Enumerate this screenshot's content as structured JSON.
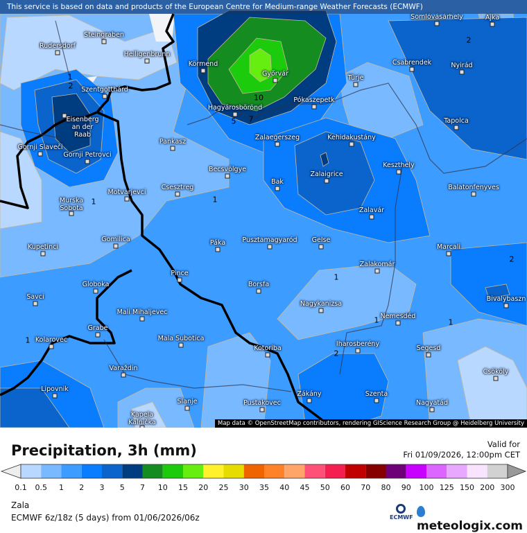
{
  "banner": "This service is based on data and products of the European Centre for Medium-range Weather Forecasts (ECMWF)",
  "attribution": "Map data © OpenStreetMap contributors, rendering GIScience Research Group @ Heidelberg University",
  "title": "Precipitation, 3h (mm)",
  "valid_label": "Valid for",
  "valid_time": "Fri 01/09/2026, 12:00pm CET",
  "region": "Zala",
  "model": "ECMWF 6z/18z (5 days) from  01/06/2026/06z",
  "ecmwf_logo": "ECMWF",
  "brand": "meteologix.com",
  "legend": {
    "ticks": [
      "0.1",
      "0.5",
      "1",
      "2",
      "3",
      "5",
      "7",
      "10",
      "15",
      "20",
      "25",
      "30",
      "35",
      "40",
      "45",
      "50",
      "60",
      "70",
      "80",
      "90",
      "100",
      "125",
      "150",
      "200",
      "300"
    ],
    "colors": [
      "#b8d8ff",
      "#78b9ff",
      "#3c9cff",
      "#0a7dff",
      "#0a64cc",
      "#003c80",
      "#148c20",
      "#1ccc0c",
      "#66ee10",
      "#fff22c",
      "#e6dc00",
      "#f06400",
      "#ff8228",
      "#ffa56a",
      "#ff5078",
      "#f51e50",
      "#c00000",
      "#870000",
      "#6e0078",
      "#c800ff",
      "#dc64ff",
      "#e8a8ff",
      "#f8e4ff",
      "#d2d2d2"
    ],
    "below_color": "#eeeeee",
    "above_color": "#999999"
  },
  "towns": [
    "Somlóvásárhely",
    "Ajka",
    "Steingraben",
    "Rudersdorf",
    "Heiligenbrunn",
    "Körmend",
    "Győrvár",
    "Türje",
    "Csabrendek",
    "Nyirád",
    "Szentgotthárd",
    "Pókaszepetk",
    "Hagyárosbörönd",
    "Eisenberg\nan der\nRaab",
    "Tapolca",
    "Zalaegerszeg",
    "Kehidakustány",
    "Pankasz",
    "Gornji Slaveči",
    "Gornji Petrovci",
    "Keszthely",
    "Becsvölgye",
    "Zalaigrice",
    "Bak",
    "Csesztreg",
    "Motvarjevci",
    "Balatonfenyves",
    "Murska\nSobota",
    "Zalavár",
    "Gomilica",
    "Pusztamagyaród",
    "Gelse",
    "Páka",
    "Kupetinci",
    "Marcali",
    "Zalakomár",
    "Pince",
    "Borsfa",
    "Globoka",
    "Savci",
    "Nagykanizsa",
    "Bivalybaszn",
    "Mali Mihaljevec",
    "Nemesdéd",
    "Grabe",
    "Kolarovec",
    "Mala Subotica",
    "Iharosberény",
    "Segesd",
    "Kotoriba",
    "Varaždin",
    "Csököly",
    "Lipovnik",
    "Zákány",
    "Szenta",
    "Slanje",
    "Pustakovec",
    "Nagyatád",
    "Kapela\nKalnička"
  ],
  "contour_labels": [
    "1",
    "2",
    "5",
    "7",
    "10",
    "1",
    "1",
    "1",
    "1",
    "1",
    "2",
    "2",
    "1",
    "2"
  ]
}
